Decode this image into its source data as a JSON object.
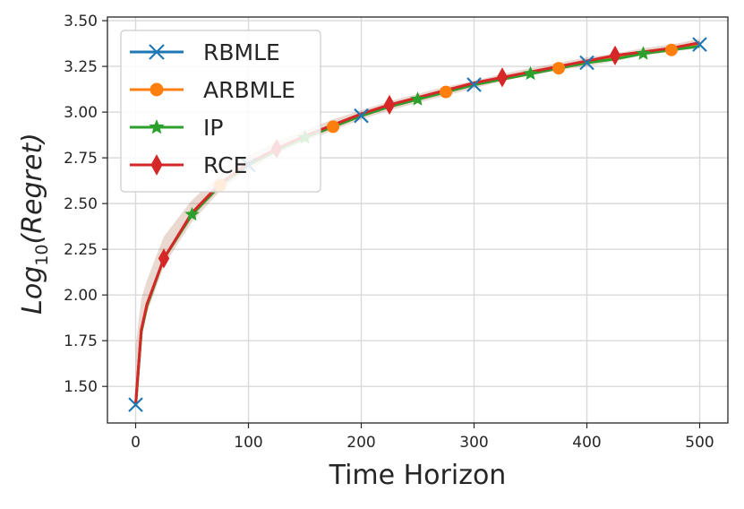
{
  "chart_data": {
    "type": "line",
    "title": "",
    "xlabel": "Time Horizon",
    "ylabel_main": "Log",
    "ylabel_sub": "10",
    "ylabel_paren": "(Regret)",
    "xlim": [
      -25,
      525
    ],
    "ylim": [
      1.3,
      3.52
    ],
    "xticks": [
      0,
      100,
      200,
      300,
      400,
      500
    ],
    "yticks": [
      1.5,
      1.75,
      2.0,
      2.25,
      2.5,
      2.75,
      3.0,
      3.25,
      3.5
    ],
    "xtick_labels": [
      "0",
      "100",
      "200",
      "300",
      "400",
      "500"
    ],
    "ytick_labels": [
      "1.50",
      "1.75",
      "2.00",
      "2.25",
      "2.50",
      "2.75",
      "3.00",
      "3.25",
      "3.50"
    ],
    "grid": true,
    "legend_position": "upper-left",
    "x": [
      0,
      5,
      10,
      25,
      50,
      75,
      100,
      125,
      150,
      175,
      200,
      225,
      250,
      275,
      300,
      325,
      350,
      375,
      400,
      425,
      450,
      475,
      500
    ],
    "series": [
      {
        "name": "RBMLE",
        "color": "#1f77b4",
        "marker": "x",
        "marker_x": [
          0,
          100,
          200,
          300,
          400,
          500
        ],
        "values": [
          1.4,
          1.8,
          1.94,
          2.2,
          2.44,
          2.6,
          2.71,
          2.8,
          2.86,
          2.93,
          2.98,
          3.03,
          3.07,
          3.11,
          3.15,
          3.18,
          3.21,
          3.24,
          3.27,
          3.3,
          3.32,
          3.35,
          3.37
        ]
      },
      {
        "name": "ARBMLE",
        "color": "#ff7f0e",
        "marker": "o",
        "marker_x": [
          75,
          175,
          275,
          375,
          475
        ],
        "values": [
          1.4,
          1.8,
          1.94,
          2.2,
          2.44,
          2.6,
          2.71,
          2.8,
          2.86,
          2.92,
          2.98,
          3.03,
          3.07,
          3.11,
          3.15,
          3.18,
          3.21,
          3.24,
          3.27,
          3.3,
          3.32,
          3.34,
          3.37
        ]
      },
      {
        "name": "IP",
        "color": "#2ca02c",
        "marker": "*",
        "marker_x": [
          50,
          150,
          250,
          350,
          450
        ],
        "values": [
          1.39,
          1.8,
          1.94,
          2.2,
          2.44,
          2.6,
          2.71,
          2.79,
          2.86,
          2.92,
          2.98,
          3.03,
          3.07,
          3.11,
          3.15,
          3.18,
          3.21,
          3.24,
          3.27,
          3.29,
          3.32,
          3.34,
          3.36
        ]
      },
      {
        "name": "RCE",
        "color": "#d62728",
        "marker": "d",
        "marker_x": [
          25,
          125,
          225,
          325,
          425
        ],
        "values": [
          1.4,
          1.81,
          1.95,
          2.2,
          2.45,
          2.61,
          2.72,
          2.8,
          2.87,
          2.93,
          2.99,
          3.04,
          3.08,
          3.12,
          3.16,
          3.19,
          3.22,
          3.25,
          3.28,
          3.31,
          3.33,
          3.35,
          3.38
        ]
      }
    ],
    "band": {
      "color": "#a0522d",
      "opacity": 0.22,
      "upper": [
        1.72,
        1.98,
        2.08,
        2.32,
        2.52,
        2.66,
        2.76,
        2.84,
        2.9,
        2.96,
        3.01,
        3.06,
        3.1,
        3.14,
        3.17,
        3.21,
        3.24,
        3.27,
        3.3,
        3.32,
        3.35,
        3.37,
        3.4
      ],
      "lower": [
        1.39,
        1.76,
        1.9,
        2.16,
        2.4,
        2.57,
        2.68,
        2.77,
        2.84,
        2.9,
        2.96,
        3.01,
        3.05,
        3.09,
        3.13,
        3.17,
        3.2,
        3.23,
        3.25,
        3.28,
        3.31,
        3.33,
        3.35
      ]
    }
  }
}
